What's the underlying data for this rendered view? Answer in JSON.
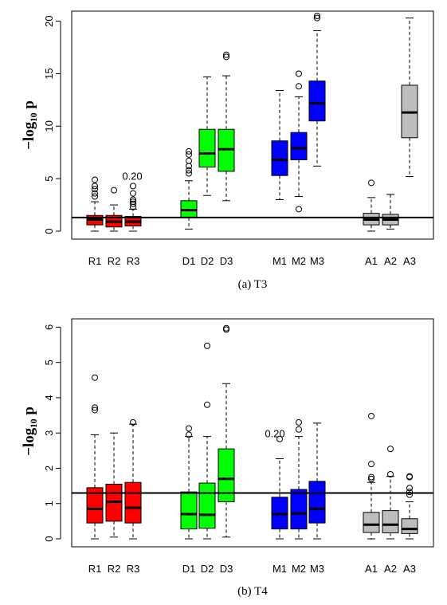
{
  "colors": {
    "R": "#ff0000",
    "D": "#00ff00",
    "M": "#0000ff",
    "A": "#bebebe",
    "line": "#000000"
  },
  "chart_data": [
    {
      "type": "boxplot",
      "caption": "(a) T3",
      "ylabel": "−log₁₀ p",
      "ylim": [
        0,
        20.5
      ],
      "yticks": [
        0,
        5,
        10,
        15,
        20
      ],
      "hline": 1.3,
      "annotation": {
        "text": "0.20",
        "group": "R3"
      },
      "boxes": [
        {
          "label": "R1",
          "group": "R",
          "min": 0,
          "q1": 0.6,
          "median": 1.1,
          "q3": 1.5,
          "max": 2.8,
          "outliers": [
            3.3,
            3.6,
            4.0,
            4.3,
            4.9
          ]
        },
        {
          "label": "R2",
          "group": "R",
          "min": 0,
          "q1": 0.4,
          "median": 0.9,
          "q3": 1.5,
          "max": 2.5,
          "outliers": [
            3.9
          ]
        },
        {
          "label": "R3",
          "group": "R",
          "min": 0,
          "q1": 0.5,
          "median": 0.9,
          "q3": 1.4,
          "max": 2.1,
          "outliers": [
            2.3,
            2.6,
            2.8,
            3.0,
            3.6,
            4.3
          ]
        },
        {
          "label": "D1",
          "group": "D",
          "min": 0.2,
          "q1": 1.3,
          "median": 2.0,
          "q3": 2.9,
          "max": 4.8,
          "outliers": [
            5.5,
            5.8,
            6.2,
            6.7,
            7.3,
            7.6
          ]
        },
        {
          "label": "D2",
          "group": "D",
          "min": 3.4,
          "q1": 6.1,
          "median": 7.4,
          "q3": 9.7,
          "max": 14.7,
          "outliers": []
        },
        {
          "label": "D3",
          "group": "D",
          "min": 2.9,
          "q1": 5.7,
          "median": 7.8,
          "q3": 9.7,
          "max": 14.8,
          "outliers": [
            16.6,
            16.8
          ]
        },
        {
          "label": "M1",
          "group": "M",
          "min": 3.0,
          "q1": 5.3,
          "median": 6.8,
          "q3": 8.6,
          "max": 13.4,
          "outliers": []
        },
        {
          "label": "M2",
          "group": "M",
          "min": 3.3,
          "q1": 6.8,
          "median": 7.9,
          "q3": 9.4,
          "max": 12.8,
          "outliers": [
            2.1,
            13.8,
            15.0
          ]
        },
        {
          "label": "M3",
          "group": "M",
          "min": 6.2,
          "q1": 10.5,
          "median": 12.2,
          "q3": 14.3,
          "max": 19.1,
          "outliers": [
            20.3,
            20.5
          ]
        },
        {
          "label": "A1",
          "group": "A",
          "min": 0,
          "q1": 0.6,
          "median": 1.1,
          "q3": 1.7,
          "max": 3.2,
          "outliers": [
            4.6
          ]
        },
        {
          "label": "A2",
          "group": "A",
          "min": 0.2,
          "q1": 0.6,
          "median": 1.1,
          "q3": 1.6,
          "max": 3.5,
          "outliers": []
        },
        {
          "label": "A3",
          "group": "A",
          "min": 5.2,
          "q1": 8.9,
          "median": 11.3,
          "q3": 13.9,
          "max": 20.3,
          "outliers": []
        }
      ]
    },
    {
      "type": "boxplot",
      "caption": "(b) T4",
      "ylabel": "−log₁₀ p",
      "ylim": [
        0,
        6.1
      ],
      "yticks": [
        0,
        1,
        2,
        3,
        4,
        5,
        6
      ],
      "hline": 1.3,
      "annotation": {
        "text": "0.20",
        "group": "M1"
      },
      "boxes": [
        {
          "label": "R1",
          "group": "R",
          "min": 0,
          "q1": 0.45,
          "median": 0.85,
          "q3": 1.45,
          "max": 2.95,
          "outliers": [
            3.65,
            3.72,
            4.57
          ]
        },
        {
          "label": "R2",
          "group": "R",
          "min": 0.05,
          "q1": 0.5,
          "median": 1.05,
          "q3": 1.55,
          "max": 3.0,
          "outliers": []
        },
        {
          "label": "R3",
          "group": "R",
          "min": 0,
          "q1": 0.45,
          "median": 0.88,
          "q3": 1.6,
          "max": 3.25,
          "outliers": [
            3.3
          ]
        },
        {
          "label": "D1",
          "group": "D",
          "min": 0,
          "q1": 0.28,
          "median": 0.7,
          "q3": 1.33,
          "max": 2.9,
          "outliers": [
            2.95,
            3.13
          ]
        },
        {
          "label": "D2",
          "group": "D",
          "min": 0,
          "q1": 0.3,
          "median": 0.68,
          "q3": 1.58,
          "max": 2.9,
          "outliers": [
            3.8,
            5.47
          ]
        },
        {
          "label": "D3",
          "group": "D",
          "min": 0.05,
          "q1": 1.05,
          "median": 1.7,
          "q3": 2.55,
          "max": 4.4,
          "outliers": [
            5.93,
            5.97
          ]
        },
        {
          "label": "M1",
          "group": "M",
          "min": 0,
          "q1": 0.28,
          "median": 0.7,
          "q3": 1.18,
          "max": 2.27,
          "outliers": [
            2.83
          ]
        },
        {
          "label": "M2",
          "group": "M",
          "min": 0,
          "q1": 0.28,
          "median": 0.72,
          "q3": 1.4,
          "max": 2.9,
          "outliers": [
            3.1,
            3.3
          ]
        },
        {
          "label": "M3",
          "group": "M",
          "min": 0,
          "q1": 0.45,
          "median": 0.85,
          "q3": 1.63,
          "max": 3.28,
          "outliers": []
        },
        {
          "label": "A1",
          "group": "A",
          "min": 0,
          "q1": 0.18,
          "median": 0.4,
          "q3": 0.75,
          "max": 1.6,
          "outliers": [
            1.7,
            1.75,
            2.12,
            3.48
          ]
        },
        {
          "label": "A2",
          "group": "A",
          "min": 0,
          "q1": 0.17,
          "median": 0.4,
          "q3": 0.8,
          "max": 1.77,
          "outliers": [
            1.83,
            2.55
          ]
        },
        {
          "label": "A3",
          "group": "A",
          "min": 0,
          "q1": 0.15,
          "median": 0.28,
          "q3": 0.57,
          "max": 1.05,
          "outliers": [
            1.25,
            1.33,
            1.44,
            1.75,
            1.77
          ]
        }
      ]
    }
  ]
}
